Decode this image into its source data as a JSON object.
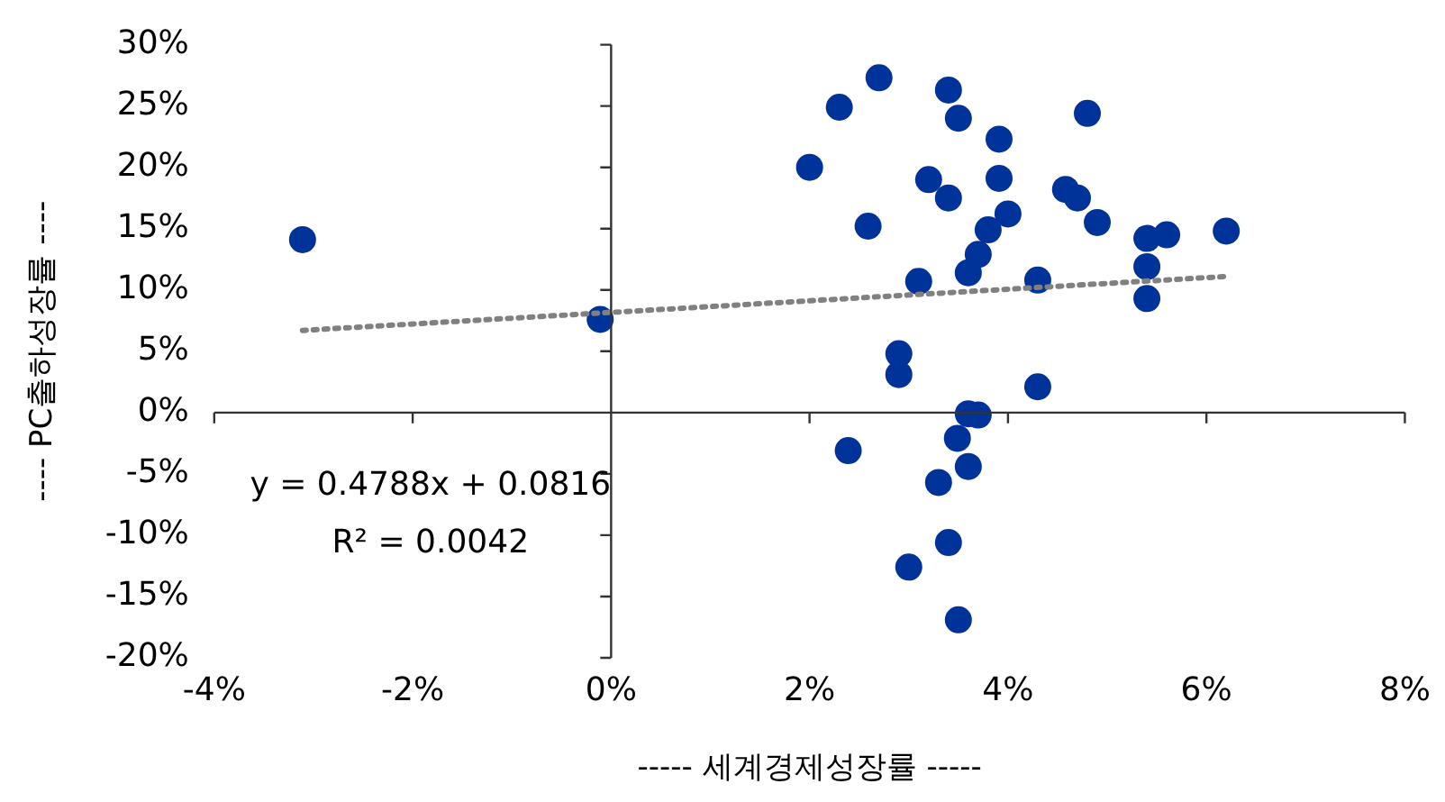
{
  "chart_data": {
    "type": "scatter",
    "xlabel": "----- 세계경제성장률 -----",
    "ylabel": "---- PC출하성장률 ----",
    "xlim": [
      -4,
      8
    ],
    "xticks": [
      {
        "value": -4,
        "label": "-4%"
      },
      {
        "value": -2,
        "label": "-2%"
      },
      {
        "value": 0,
        "label": "0%"
      },
      {
        "value": 2,
        "label": "2%"
      },
      {
        "value": 4,
        "label": "4%"
      },
      {
        "value": 6,
        "label": "6%"
      },
      {
        "value": 8,
        "label": "8%"
      }
    ],
    "ylim": [
      -20,
      30
    ],
    "yticks": [
      {
        "value": -20,
        "label": "-20%"
      },
      {
        "value": -15,
        "label": "-15%"
      },
      {
        "value": -10,
        "label": "-10%"
      },
      {
        "value": -5,
        "label": "-5%"
      },
      {
        "value": 0,
        "label": "0%"
      },
      {
        "value": 5,
        "label": "5%"
      },
      {
        "value": 10,
        "label": "10%"
      },
      {
        "value": 15,
        "label": "15%"
      },
      {
        "value": 20,
        "label": "20%"
      },
      {
        "value": 25,
        "label": "25%"
      },
      {
        "value": 30,
        "label": "30%"
      }
    ],
    "legend": false,
    "annotations": [
      "y = 0.4788x + 0.0816",
      "R² = 0.0042"
    ],
    "series": [
      {
        "color": "#003399",
        "marker": "circle",
        "x": [
          -3.11,
          -0.11,
          2.7,
          2.3,
          3.4,
          3.5,
          2.0,
          3.91,
          4.8,
          3.2,
          3.91,
          3.4,
          4.58,
          4.7,
          4.0,
          2.59,
          3.8,
          4.9,
          5.4,
          5.6,
          6.2,
          3.7,
          3.6,
          3.1,
          4.3,
          5.4,
          5.4,
          2.9,
          2.9,
          4.3,
          3.6,
          3.7,
          2.39,
          3.49,
          3.6,
          3.3,
          3.4,
          3.0,
          3.5
        ],
        "values": [
          14.1,
          7.6,
          27.3,
          24.9,
          26.3,
          24.0,
          20.0,
          22.3,
          24.4,
          19.0,
          19.1,
          17.5,
          18.2,
          17.5,
          16.2,
          15.2,
          14.9,
          15.5,
          14.2,
          14.5,
          14.8,
          12.9,
          11.4,
          10.7,
          10.8,
          11.9,
          9.3,
          4.8,
          3.1,
          2.1,
          -0.1,
          -0.2,
          -3.1,
          -2.1,
          -4.4,
          -5.7,
          -10.6,
          -12.6,
          -16.9
        ]
      },
      {
        "type": "line",
        "color": "#808080",
        "marker": "none",
        "line_style": "dotted",
        "x": [
          -3.11,
          6.2
        ],
        "values": [
          6.7,
          11.1
        ]
      }
    ]
  }
}
